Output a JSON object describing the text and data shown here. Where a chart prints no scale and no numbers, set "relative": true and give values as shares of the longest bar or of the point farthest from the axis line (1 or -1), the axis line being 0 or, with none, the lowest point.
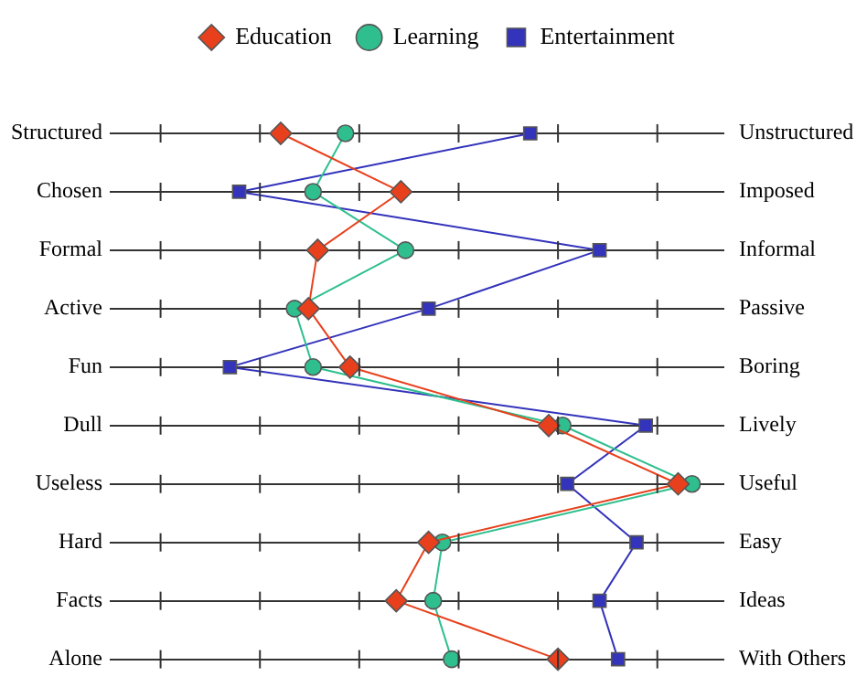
{
  "chart_data": {
    "type": "line",
    "orientation": "horizontal",
    "relative": true,
    "categories": [
      "Structured",
      "Chosen",
      "Formal",
      "Active",
      "Fun",
      "Dull",
      "Useless",
      "Hard",
      "Facts",
      "Alone"
    ],
    "y2_categories": [
      "Unstructured",
      "Imposed",
      "Informal",
      "Passive",
      "Boring",
      "Lively",
      "Useful",
      "Easy",
      "Ideas",
      "With Others"
    ],
    "series": [
      {
        "name": "Education",
        "color": "#e8401c",
        "marker": "diamond",
        "values": [
          0.11,
          0.37,
          0.19,
          0.17,
          0.26,
          0.69,
          0.97,
          0.43,
          0.36,
          0.71
        ]
      },
      {
        "name": "Learning",
        "color": "#2fbf8f",
        "marker": "circle",
        "values": [
          0.25,
          0.18,
          0.38,
          0.14,
          0.18,
          0.72,
          1,
          0.46,
          0.44,
          0.48
        ]
      },
      {
        "name": "Entertainment",
        "color": "#3333bb",
        "marker": "square",
        "values": [
          0.65,
          0.02,
          0.8,
          0.43,
          0,
          0.9,
          0.73,
          0.88,
          0.8,
          0.84
        ]
      }
    ],
    "grid": "y",
    "legend": "top"
  }
}
